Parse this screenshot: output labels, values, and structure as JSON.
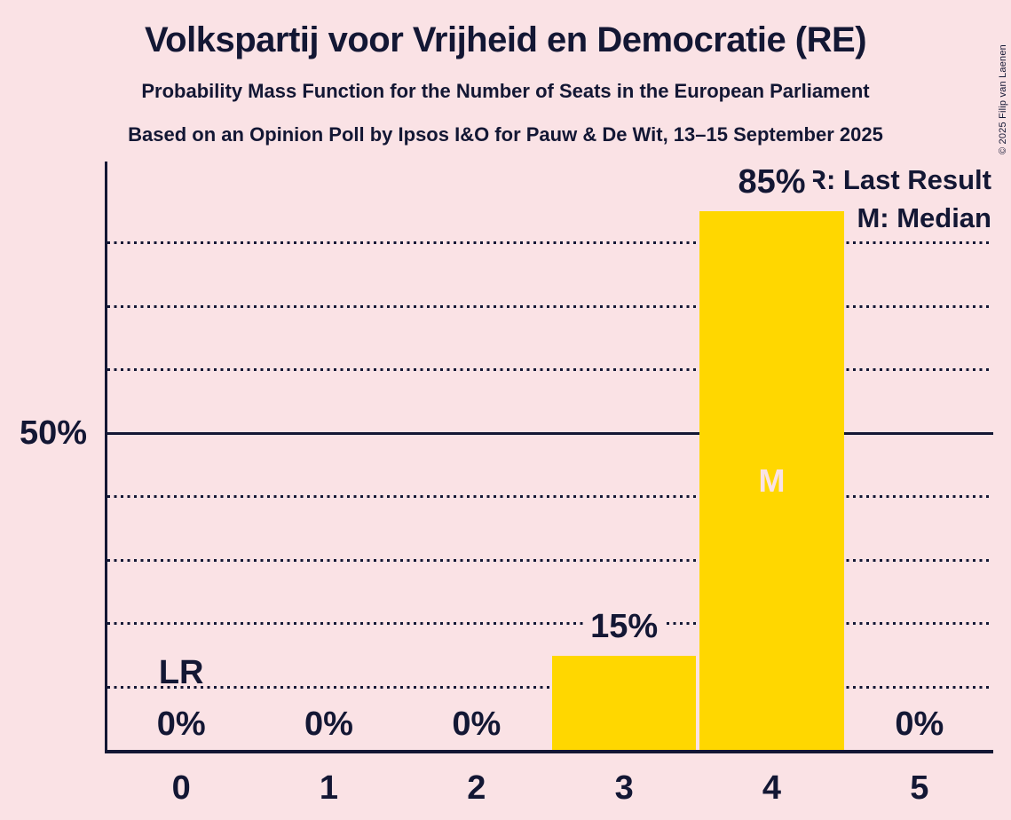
{
  "header": {
    "title": "Volkspartij voor Vrijheid en Democratie (RE)",
    "subtitle_line1": "Probability Mass Function for the Number of Seats in the European Parliament",
    "subtitle_line2": "Based on an Opinion Poll by Ipsos I&O for Pauw & De Wit, 13–15 September 2025"
  },
  "copyright": "© 2025 Filip van Laenen",
  "legend": {
    "last_result": "LR: Last Result",
    "median": "M: Median"
  },
  "chart_data": {
    "type": "bar",
    "title": "Probability Mass Function for the Number of Seats in the European Parliament",
    "categories": [
      "0",
      "1",
      "2",
      "3",
      "4",
      "5"
    ],
    "values": [
      0,
      0,
      0,
      15,
      85,
      0
    ],
    "value_labels": [
      "0%",
      "0%",
      "0%",
      "15%",
      "85%",
      "0%"
    ],
    "xlabel": "",
    "ylabel": "",
    "ylim": [
      0,
      92
    ],
    "ytick_values": [
      50
    ],
    "ytick_labels": [
      "50%"
    ],
    "dotted_gridlines_pct": [
      10,
      20,
      30,
      40,
      60,
      70,
      80
    ],
    "solid_gridline_pct": 50,
    "grid": "horizontal dotted, solid line at 50%",
    "legend_position": "top-right",
    "annotations": [
      {
        "text": "LR",
        "meaning": "Last Result",
        "category": "0"
      },
      {
        "text": "M",
        "meaning": "Median",
        "category": "4"
      }
    ],
    "colors": {
      "background": "#fae2e5",
      "bar": "#ffd700",
      "text": "#131734",
      "median_letter": "#fae2e5"
    }
  }
}
